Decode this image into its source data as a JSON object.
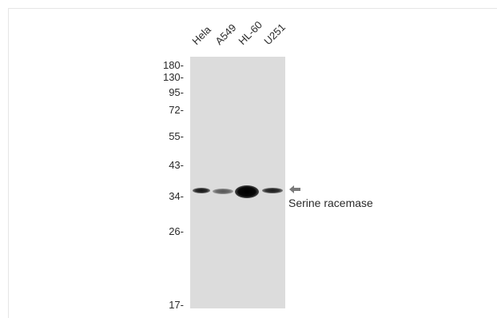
{
  "lanes": [
    "Hela",
    "A549",
    "HL-60",
    "U251"
  ],
  "mw_markers": [
    "180-",
    "130-",
    "95-",
    "72-",
    "55-",
    "43-",
    "34-",
    "26-",
    "17-"
  ],
  "target": "Serine racemase",
  "arrow_icon": "left-arrow-icon",
  "colors": {
    "membrane": "#dcdcdc",
    "band": "#111111"
  }
}
